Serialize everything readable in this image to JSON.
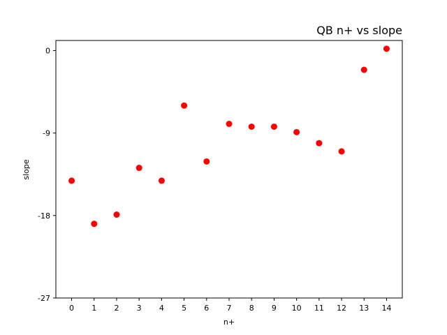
{
  "chart_data": {
    "type": "scatter",
    "title": "QB n+ vs slope",
    "xlabel": "n+",
    "ylabel": "slope",
    "x": [
      0,
      1,
      2,
      3,
      4,
      5,
      6,
      7,
      8,
      9,
      10,
      11,
      12,
      13,
      14
    ],
    "y": [
      -14.2,
      -18.9,
      -17.9,
      -12.8,
      -14.2,
      -6.0,
      -12.1,
      -8.0,
      -8.3,
      -8.3,
      -8.9,
      -10.1,
      -11.0,
      -2.1,
      0.2
    ],
    "xlim": [
      -0.7,
      14.7
    ],
    "ylim": [
      -27,
      1.1
    ],
    "xticks": [
      0,
      1,
      2,
      3,
      4,
      5,
      6,
      7,
      8,
      9,
      10,
      11,
      12,
      13,
      14
    ],
    "yticks": [
      0,
      -9,
      -18,
      -27
    ],
    "marker_color": "#ff0000",
    "grid": false,
    "legend": "none"
  }
}
